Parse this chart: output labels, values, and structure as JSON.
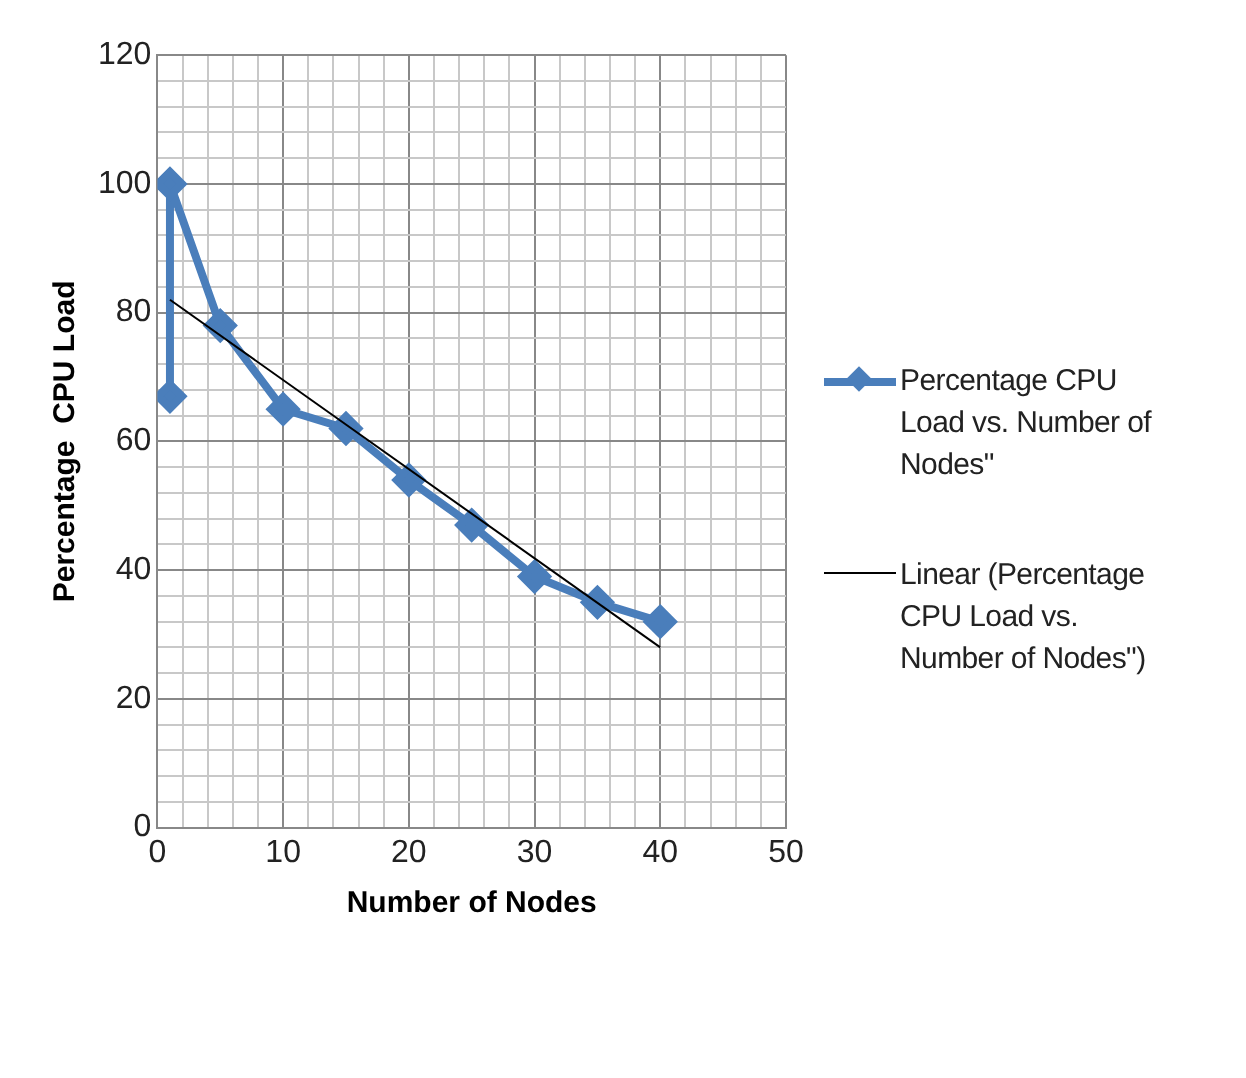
{
  "chart_data": {
    "type": "line",
    "xlabel": "Number of Nodes",
    "ylabel": "Percentage  CPU Load",
    "xlim": [
      0,
      50
    ],
    "ylim": [
      0,
      120
    ],
    "xticks": [
      0,
      {
        "value": 2,
        "label": null
      },
      {
        "value": 4,
        "label": null
      },
      {
        "value": 6,
        "label": null
      },
      {
        "value": 8,
        "label": null
      },
      10,
      {
        "value": 12,
        "label": null
      },
      {
        "value": 14,
        "label": null
      },
      {
        "value": 16,
        "label": null
      },
      {
        "value": 18,
        "label": null
      },
      20,
      {
        "value": 22,
        "label": null
      },
      {
        "value": 24,
        "label": null
      },
      {
        "value": 26,
        "label": null
      },
      {
        "value": 28,
        "label": null
      },
      30,
      {
        "value": 32,
        "label": null
      },
      {
        "value": 34,
        "label": null
      },
      {
        "value": 36,
        "label": null
      },
      {
        "value": 38,
        "label": null
      },
      40,
      {
        "value": 42,
        "label": null
      },
      {
        "value": 44,
        "label": null
      },
      {
        "value": 46,
        "label": null
      },
      {
        "value": 48,
        "label": null
      },
      50
    ],
    "yticks": [
      0,
      {
        "value": 4,
        "label": null
      },
      {
        "value": 8,
        "label": null
      },
      {
        "value": 12,
        "label": null
      },
      {
        "value": 16,
        "label": null
      },
      20,
      {
        "value": 24,
        "label": null
      },
      {
        "value": 28,
        "label": null
      },
      {
        "value": 32,
        "label": null
      },
      {
        "value": 36,
        "label": null
      },
      40,
      {
        "value": 44,
        "label": null
      },
      {
        "value": 48,
        "label": null
      },
      {
        "value": 52,
        "label": null
      },
      {
        "value": 56,
        "label": null
      },
      60,
      {
        "value": 64,
        "label": null
      },
      {
        "value": 68,
        "label": null
      },
      {
        "value": 72,
        "label": null
      },
      {
        "value": 76,
        "label": null
      },
      80,
      {
        "value": 84,
        "label": null
      },
      {
        "value": 88,
        "label": null
      },
      {
        "value": 92,
        "label": null
      },
      {
        "value": 96,
        "label": null
      },
      100,
      {
        "value": 104,
        "label": null
      },
      {
        "value": 108,
        "label": null
      },
      {
        "value": 112,
        "label": null
      },
      {
        "value": 116,
        "label": null
      },
      120
    ],
    "grid": true,
    "legend": "right",
    "series": [
      {
        "name": "Percentage CPU Load vs. Number of Nodes\"",
        "color": "#4a7ebb",
        "marker": "diamond",
        "x": [
          1,
          1,
          5,
          10,
          15,
          20,
          25,
          30,
          35,
          40
        ],
        "values": [
          67,
          100,
          78,
          65,
          62,
          54,
          47,
          39,
          35,
          32
        ]
      },
      {
        "name": "Linear (Percentage CPU Load vs. Number of Nodes\")",
        "color": "#000000",
        "marker": "none",
        "x": [
          1,
          40
        ],
        "values": [
          82,
          28
        ]
      }
    ]
  }
}
